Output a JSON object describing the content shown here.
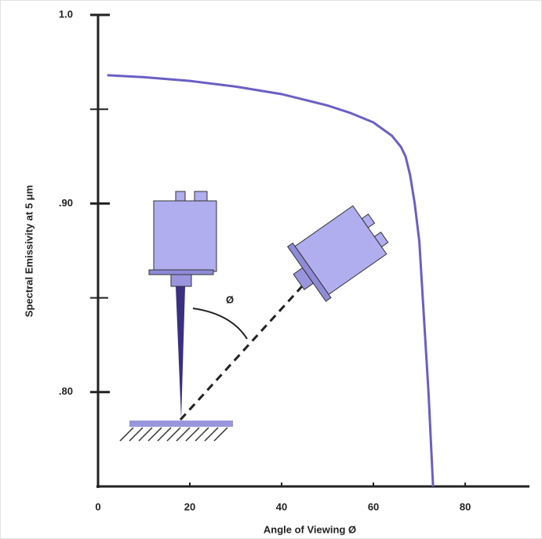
{
  "chart_data": {
    "type": "line",
    "xlabel": "Angle of Viewing Ø",
    "ylabel": "Spectral Emissivity at 5 μm",
    "x": [
      2,
      10,
      20,
      30,
      40,
      50,
      55,
      60,
      64,
      66,
      67,
      68,
      69,
      70,
      71,
      72,
      73
    ],
    "values": [
      0.968,
      0.967,
      0.965,
      0.962,
      0.958,
      0.952,
      0.948,
      0.943,
      0.936,
      0.93,
      0.925,
      0.915,
      0.9,
      0.88,
      0.84,
      0.8,
      0.75
    ],
    "color": "#6a5fc4",
    "xlim": [
      0,
      94
    ],
    "xticks": [
      0,
      20,
      40,
      60,
      80
    ],
    "ylim": [
      0.75,
      1.0
    ],
    "yticks": [
      {
        "value": 1.0,
        "label": "1.0"
      },
      {
        "value": 0.9,
        "label": ".90"
      },
      {
        "value": 0.8,
        "label": ".80"
      }
    ],
    "yminor_ticks": [
      0.95,
      0.85
    ],
    "annotation": "Ø"
  }
}
